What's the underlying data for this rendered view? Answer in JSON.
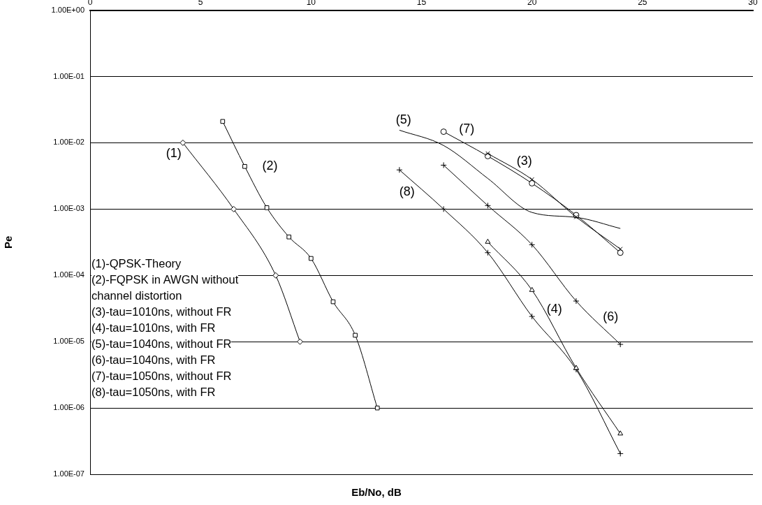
{
  "chart_data": {
    "type": "line",
    "xlabel": "Eb/No, dB",
    "ylabel": "Pe",
    "log": "y",
    "grid": "y",
    "legend": false,
    "line_style": "solid",
    "xlim": [
      0,
      30
    ],
    "xticks": [
      0,
      5,
      10,
      15,
      20,
      25,
      30
    ],
    "ylim": [
      1e-07,
      1
    ],
    "yticks": [
      {
        "value": 1,
        "label": "1.00E+00"
      },
      {
        "value": 0.1,
        "label": "1.00E-01"
      },
      {
        "value": 0.01,
        "label": "1.00E-02"
      },
      {
        "value": 0.001,
        "label": "1.00E-03"
      },
      {
        "value": 0.0001,
        "label": "1.00E-04"
      },
      {
        "value": 1e-05,
        "label": "1.00E-05"
      },
      {
        "value": 1e-06,
        "label": "1.00E-06"
      },
      {
        "value": 1e-07,
        "label": "1.00E-07"
      }
    ],
    "series": [
      {
        "name": "(1)",
        "color": "#000000",
        "marker": "diamond",
        "x": [
          4.2,
          6.5,
          8.4,
          9.5
        ],
        "values": [
          0.01,
          0.001,
          0.0001,
          1e-05
        ]
      },
      {
        "name": "(2)",
        "color": "#000000",
        "marker": "square",
        "x": [
          6,
          7,
          8,
          9,
          10,
          11,
          12,
          13
        ],
        "values": [
          0.021,
          0.0044,
          0.00105,
          0.00038,
          0.00018,
          4e-05,
          1.25e-05,
          1e-06
        ]
      },
      {
        "name": "(3)",
        "color": "#000000",
        "marker": "x",
        "x": [
          18,
          20,
          22,
          24
        ],
        "values": [
          0.0069,
          0.0028,
          0.00076,
          0.00025
        ]
      },
      {
        "name": "(4)",
        "color": "#000000",
        "marker": "triangle",
        "x": [
          18,
          20,
          22,
          24
        ],
        "values": [
          0.00032,
          6e-05,
          4e-06,
          4.1e-07
        ]
      },
      {
        "name": "(5)",
        "color": "#000000",
        "marker": "none",
        "x": [
          14,
          16,
          18,
          20,
          22,
          24
        ],
        "values": [
          0.0155,
          0.0091,
          0.0029,
          0.00089,
          0.00075,
          0.00051
        ]
      },
      {
        "name": "(6)",
        "color": "#000000",
        "marker": "cross",
        "x": [
          16,
          18,
          20,
          22,
          24
        ],
        "values": [
          0.0046,
          0.00113,
          0.00029,
          4.1e-05,
          9.1e-06
        ]
      },
      {
        "name": "(7)",
        "color": "#000000",
        "marker": "circle",
        "x": [
          16,
          18,
          20,
          22,
          24
        ],
        "values": [
          0.0147,
          0.0063,
          0.00245,
          0.00081,
          0.00022
        ]
      },
      {
        "name": "(8)",
        "color": "#000000",
        "marker": "cross",
        "x": [
          14,
          16,
          18,
          20,
          22,
          24
        ],
        "values": [
          0.0039,
          0.001,
          0.00022,
          2.4e-05,
          3.8e-06,
          2.05e-07
        ]
      }
    ],
    "annotations": [
      "(1)-QPSK-Theory",
      "(2)-FQPSK in AWGN without channel distortion",
      "(3)-tau=1010ns, without FR",
      "(4)-tau=1010ns, with FR",
      "(5)-tau=1040ns, without FR",
      "(6)-tau=1040ns, with FR",
      "(7)-tau=1050ns, without FR",
      "(8)-tau=1050ns, with FR"
    ]
  }
}
